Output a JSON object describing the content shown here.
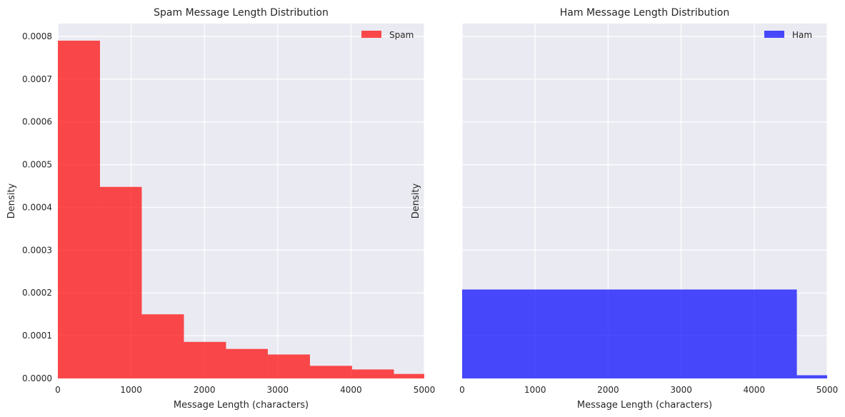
{
  "chart_data": [
    {
      "type": "bar",
      "title": "Spam Message Length Distribution",
      "xlabel": "Message Length (characters)",
      "ylabel": "Density",
      "xlim": [
        0,
        5000
      ],
      "ylim": [
        0,
        0.00083
      ],
      "xticks": [
        0,
        1000,
        2000,
        3000,
        4000,
        5000
      ],
      "xtick_labels": [
        "0",
        "1000",
        "2000",
        "3000",
        "4000",
        "5000"
      ],
      "yticks": [
        0,
        0.0001,
        0.0002,
        0.0003,
        0.0004,
        0.0005,
        0.0006,
        0.0007,
        0.0008
      ],
      "ytick_labels": [
        "0.0000",
        "0.0001",
        "0.0002",
        "0.0003",
        "0.0004",
        "0.0005",
        "0.0006",
        "0.0007",
        "0.0008"
      ],
      "bins": [
        {
          "x0": 0,
          "x1": 575,
          "value": 0.00079
        },
        {
          "x0": 575,
          "x1": 1145,
          "value": 0.000448
        },
        {
          "x0": 1145,
          "x1": 1720,
          "value": 0.00015
        },
        {
          "x0": 1720,
          "x1": 2295,
          "value": 8.55e-05
        },
        {
          "x0": 2295,
          "x1": 2865,
          "value": 6.9e-05
        },
        {
          "x0": 2865,
          "x1": 3440,
          "value": 5.6e-05
        },
        {
          "x0": 3440,
          "x1": 4015,
          "value": 2.95e-05
        },
        {
          "x0": 4015,
          "x1": 4585,
          "value": 2.1e-05
        },
        {
          "x0": 4585,
          "x1": 5160,
          "value": 1.05e-05
        }
      ],
      "series": [
        {
          "name": "Spam",
          "color": "#ff0000",
          "opacity": 0.7
        }
      ],
      "legend": "top-right",
      "grid": true
    },
    {
      "type": "bar",
      "title": "Ham Message Length Distribution",
      "xlabel": "Message Length (characters)",
      "ylabel": "Density",
      "xlim": [
        0,
        5000
      ],
      "ylim": [
        0,
        0.00083
      ],
      "xticks": [
        0,
        1000,
        2000,
        3000,
        4000,
        5000
      ],
      "xtick_labels": [
        "0",
        "1000",
        "2000",
        "3000",
        "4000",
        "5000"
      ],
      "yticks": [
        0,
        0.0001,
        0.0002,
        0.0003,
        0.0004,
        0.0005,
        0.0006,
        0.0007,
        0.0008
      ],
      "ytick_labels": [],
      "bins": [
        {
          "x0": 0,
          "x1": 4585,
          "value": 0.000208
        },
        {
          "x0": 4585,
          "x1": 5160,
          "value": 7.5e-06
        }
      ],
      "series": [
        {
          "name": "Ham",
          "color": "#0000ff",
          "opacity": 0.7
        }
      ],
      "legend": "top-right",
      "grid": true
    }
  ]
}
